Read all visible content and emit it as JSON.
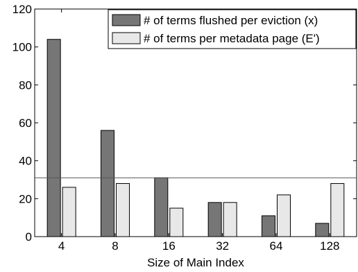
{
  "chart_data": {
    "type": "bar",
    "xlabel": "Size of Main Index",
    "ylabel": "",
    "categories": [
      "4",
      "8",
      "16",
      "32",
      "64",
      "128"
    ],
    "ylim": [
      0,
      120
    ],
    "yticks": [
      0,
      20,
      40,
      60,
      80,
      100,
      120
    ],
    "reference_line": 31,
    "legend_position": "top-right",
    "series": [
      {
        "name": "# of terms flushed per eviction (x)",
        "values": [
          104,
          56,
          31,
          18,
          11,
          7
        ],
        "color": "#767676"
      },
      {
        "name": "# of terms per metadata page (E')",
        "values": [
          26,
          28,
          15,
          18,
          22,
          28
        ],
        "color": "#e8e8e8"
      }
    ]
  }
}
